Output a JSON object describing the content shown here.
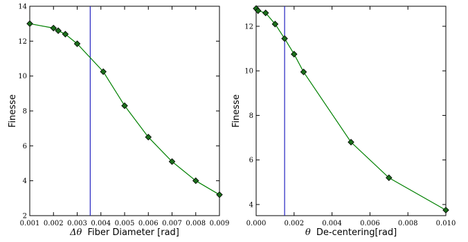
{
  "chart_data": [
    {
      "type": "line",
      "xlabel_symbol": "Δθ",
      "xlabel": "Fiber Diameter [rad]",
      "ylabel": "Finesse",
      "xlim": [
        0.001,
        0.009
      ],
      "ylim": [
        2,
        14
      ],
      "xticks": [
        "0.001",
        "0.002",
        "0.003",
        "0.004",
        "0.005",
        "0.006",
        "0.007",
        "0.008",
        "0.009"
      ],
      "yticks": [
        "2",
        "4",
        "6",
        "8",
        "10",
        "12",
        "14"
      ],
      "series": [
        {
          "x": [
            0.001,
            0.002,
            0.0022,
            0.0025,
            0.003,
            0.0041,
            0.005,
            0.006,
            0.007,
            0.008,
            0.009
          ],
          "y": [
            13.0,
            12.75,
            12.6,
            12.4,
            11.85,
            10.25,
            8.3,
            6.5,
            5.1,
            4.0,
            3.2
          ]
        }
      ],
      "vline": 0.00355,
      "grid": false,
      "colors": {
        "line": "#008000",
        "marker": "#1b6e1b",
        "vline": "#2020c0"
      }
    },
    {
      "type": "line",
      "xlabel_symbol": "θ",
      "xlabel": "De-centering[rad]",
      "ylabel": "Finesse",
      "xlim": [
        0.0,
        0.01
      ],
      "ylim": [
        3.5,
        12.9
      ],
      "xticks": [
        "0.000",
        "0.002",
        "0.004",
        "0.006",
        "0.008",
        "0.010"
      ],
      "yticks": [
        "4",
        "6",
        "8",
        "10",
        "12"
      ],
      "series": [
        {
          "x": [
            0.0,
            0.0001,
            0.0005,
            0.001,
            0.0015,
            0.002,
            0.0025,
            0.005,
            0.007,
            0.01
          ],
          "y": [
            12.8,
            12.7,
            12.6,
            12.1,
            11.45,
            10.75,
            9.95,
            6.8,
            5.2,
            3.75
          ]
        }
      ],
      "vline": 0.0015,
      "grid": false,
      "colors": {
        "line": "#008000",
        "marker": "#1b6e1b",
        "vline": "#2020c0"
      }
    }
  ]
}
